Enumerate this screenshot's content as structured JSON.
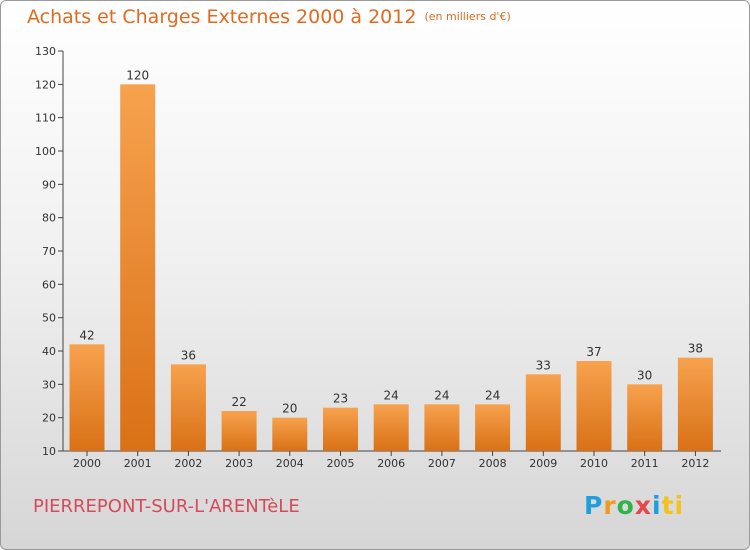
{
  "header": {
    "title": "Achats et Charges Externes 2000 à 2012",
    "unit": "(en milliers d'€)"
  },
  "footer": {
    "commune": "PIERREPONT-SUR-L'ARENTèLE",
    "logo_letters": [
      "P",
      "r",
      "o",
      "x",
      "i",
      "ti"
    ]
  },
  "colors": {
    "bar_top": "#f7a24e",
    "bar_bottom": "#d97116",
    "title": "#e06a1e"
  },
  "chart_data": {
    "type": "bar",
    "categories": [
      "2000",
      "2001",
      "2002",
      "2003",
      "2004",
      "2005",
      "2006",
      "2007",
      "2008",
      "2009",
      "2010",
      "2011",
      "2012"
    ],
    "values": [
      42,
      120,
      36,
      22,
      20,
      23,
      24,
      24,
      24,
      33,
      37,
      30,
      38
    ],
    "data_labels": [
      "42",
      "120",
      "36",
      "22",
      "20",
      "23",
      "24",
      "24",
      "24",
      "33",
      "37",
      "30",
      "38"
    ],
    "yticks": [
      "10",
      "20",
      "30",
      "40",
      "50",
      "60",
      "70",
      "80",
      "90",
      "100",
      "110",
      "120",
      "130"
    ],
    "ylim": [
      10,
      130
    ],
    "grid": false,
    "legend": "none"
  }
}
